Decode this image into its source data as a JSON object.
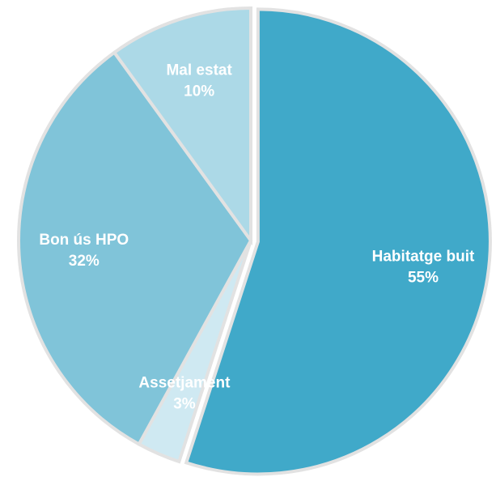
{
  "chart_data": {
    "type": "pie",
    "categories": [
      "Habitatge buit",
      "Assetjament",
      "Bon ús HPO",
      "Mal estat"
    ],
    "values": [
      55,
      3,
      32,
      10
    ],
    "value_labels": [
      "55%",
      "3%",
      "32%",
      "10%"
    ],
    "colors": [
      "#40a9c9",
      "#cfe9f2",
      "#80c4d9",
      "#acd9e7"
    ]
  }
}
